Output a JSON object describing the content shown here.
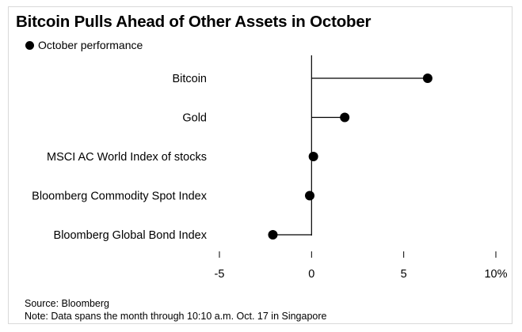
{
  "title": "Bitcoin Pulls Ahead of Other Assets in October",
  "legend": {
    "label": "October performance"
  },
  "source": "Source: Bloomberg",
  "note": "Note: Data spans the month through 10:10 a.m. Oct. 17 in Singapore",
  "colors": {
    "marker": "#000000",
    "axis": "#000000",
    "frame": "#d9d9d9"
  },
  "chart_data": {
    "type": "dot",
    "title": "Bitcoin Pulls Ahead of Other Assets in October",
    "series": [
      {
        "name": "October performance",
        "categories": [
          "Bitcoin",
          "Gold",
          "MSCI AC World Index of stocks",
          "Bloomberg Commodity Spot Index",
          "Bloomberg Global Bond Index"
        ],
        "values": [
          6.3,
          1.8,
          0.1,
          -0.1,
          -2.1
        ]
      }
    ],
    "xlim": [
      -5,
      10
    ],
    "xticks": [
      -5,
      0,
      5,
      10
    ],
    "xtick_labels": [
      "-5",
      "0",
      "5",
      "10%"
    ],
    "grid": false,
    "legend_position": "top-left"
  }
}
